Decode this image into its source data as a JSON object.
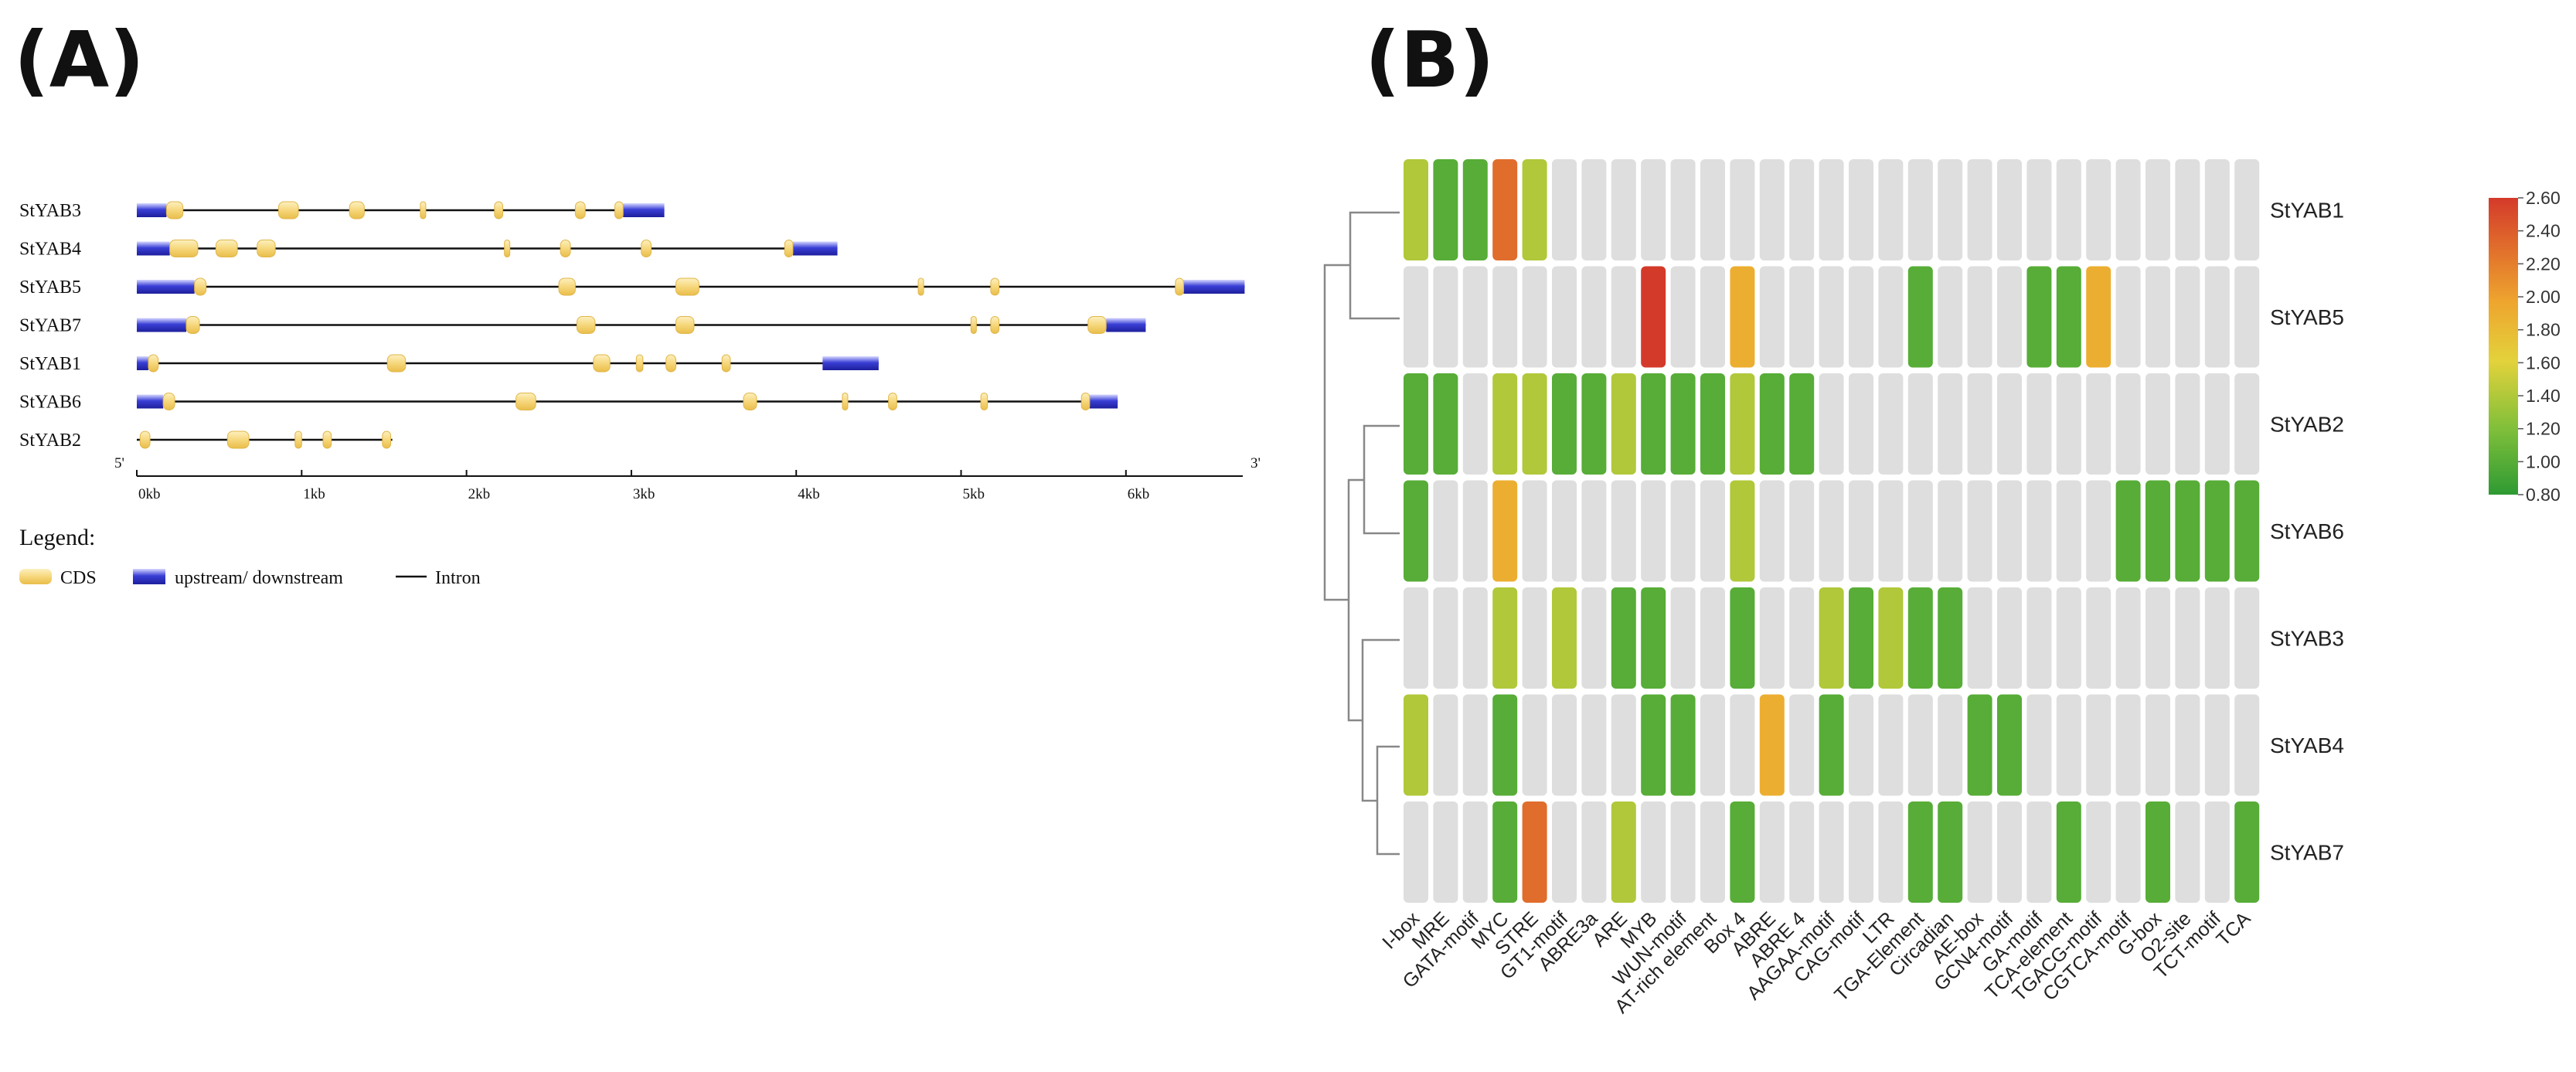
{
  "panels": {
    "a": "(A)",
    "b": "(B)"
  },
  "chart_data": [
    {
      "type": "gene_structure",
      "panel": "(A)",
      "unit": "kb",
      "end_labels": {
        "left": "5'",
        "right": "3'"
      },
      "axis": {
        "ticks": [
          0,
          1,
          2,
          3,
          4,
          5,
          6
        ],
        "tick_labels": [
          "0kb",
          "1kb",
          "2kb",
          "3kb",
          "4kb",
          "5kb",
          "6kb"
        ],
        "range": [
          0,
          6.7
        ]
      },
      "genes": [
        {
          "name": "StYAB3",
          "length": 3.2,
          "utr": [
            [
              0,
              0.18
            ],
            [
              2.95,
              3.2
            ]
          ],
          "cds": [
            [
              0.18,
              0.28
            ],
            [
              0.86,
              0.98
            ],
            [
              1.29,
              1.38
            ],
            [
              1.72,
              1.75
            ],
            [
              2.17,
              2.22
            ],
            [
              2.66,
              2.72
            ],
            [
              2.9,
              2.95
            ]
          ]
        },
        {
          "name": "StYAB4",
          "length": 4.25,
          "utr": [
            [
              0,
              0.2
            ],
            [
              3.98,
              4.25
            ]
          ],
          "cds": [
            [
              0.2,
              0.37
            ],
            [
              0.48,
              0.61
            ],
            [
              0.73,
              0.84
            ],
            [
              2.23,
              2.26
            ],
            [
              2.57,
              2.63
            ],
            [
              3.06,
              3.12
            ],
            [
              3.93,
              3.98
            ]
          ]
        },
        {
          "name": "StYAB5",
          "length": 6.72,
          "utr": [
            [
              0,
              0.35
            ],
            [
              6.35,
              6.72
            ]
          ],
          "cds": [
            [
              0.35,
              0.42
            ],
            [
              2.56,
              2.66
            ],
            [
              3.27,
              3.41
            ],
            [
              4.74,
              4.77
            ],
            [
              5.18,
              5.23
            ],
            [
              6.3,
              6.35
            ]
          ]
        },
        {
          "name": "StYAB7",
          "length": 6.12,
          "utr": [
            [
              0,
              0.3
            ],
            [
              5.88,
              6.12
            ]
          ],
          "cds": [
            [
              0.3,
              0.38
            ],
            [
              2.67,
              2.78
            ],
            [
              3.27,
              3.38
            ],
            [
              5.06,
              5.09
            ],
            [
              5.18,
              5.23
            ],
            [
              5.77,
              5.88
            ]
          ]
        },
        {
          "name": "StYAB1",
          "length": 4.5,
          "utr": [
            [
              0,
              0.07
            ],
            [
              4.16,
              4.5
            ]
          ],
          "cds": [
            [
              0.07,
              0.13
            ],
            [
              1.52,
              1.63
            ],
            [
              2.77,
              2.87
            ],
            [
              3.03,
              3.07
            ],
            [
              3.21,
              3.27
            ],
            [
              3.55,
              3.6
            ]
          ]
        },
        {
          "name": "StYAB6",
          "length": 5.95,
          "utr": [
            [
              0,
              0.16
            ],
            [
              5.78,
              5.95
            ]
          ],
          "cds": [
            [
              0.16,
              0.23
            ],
            [
              2.3,
              2.42
            ],
            [
              3.68,
              3.76
            ],
            [
              4.28,
              4.31
            ],
            [
              4.56,
              4.61
            ],
            [
              5.12,
              5.16
            ],
            [
              5.73,
              5.78
            ]
          ]
        },
        {
          "name": "StYAB2",
          "length": 1.55,
          "utr": [],
          "cds": [
            [
              0.02,
              0.08
            ],
            [
              0.55,
              0.68
            ],
            [
              0.96,
              1.0
            ],
            [
              1.13,
              1.18
            ],
            [
              1.49,
              1.54
            ]
          ]
        }
      ],
      "legend": {
        "title": "Legend:",
        "cds": "CDS",
        "utr": "upstream/ downstream",
        "intron": "Intron"
      },
      "colors": {
        "cds": "#f6d77c",
        "utr": "#3a3fd6",
        "intron": "#111111"
      }
    },
    {
      "type": "heatmap",
      "panel": "(B)",
      "rows": [
        "StYAB1",
        "StYAB5",
        "StYAB2",
        "StYAB6",
        "StYAB3",
        "StYAB4",
        "StYAB7"
      ],
      "columns": [
        "I-box",
        "MRE",
        "GATA-motif",
        "MYC",
        "STRE",
        "GT1-motif",
        "ABRE3a",
        "ARE",
        "MYB",
        "WUN-motif",
        "AT-rich element",
        "Box 4",
        "ABRE",
        "ABRE 4",
        "AAGAA-motif",
        "CAG-motif",
        "LTR",
        "TGA-Element",
        "Circadian",
        "AE-box",
        "GCN4-motif",
        "GA-motif",
        "TCA-element",
        "TGACG-motif",
        "CGTCA-motif",
        "G-box",
        "O2-site",
        "TCT-motif",
        "TCA"
      ],
      "values": [
        [
          1.4,
          1.0,
          1.0,
          2.3,
          1.4,
          null,
          null,
          null,
          null,
          null,
          null,
          null,
          null,
          null,
          null,
          null,
          null,
          null,
          null,
          null,
          null,
          null,
          null,
          null,
          null,
          null,
          null,
          null,
          null
        ],
        [
          null,
          null,
          null,
          null,
          null,
          null,
          null,
          null,
          2.6,
          null,
          null,
          1.9,
          null,
          null,
          null,
          null,
          null,
          1.0,
          null,
          null,
          null,
          1.0,
          1.0,
          1.9,
          null,
          null,
          null,
          null,
          null
        ],
        [
          1.0,
          1.0,
          null,
          1.4,
          1.4,
          1.0,
          1.0,
          1.4,
          1.0,
          1.0,
          1.0,
          1.4,
          1.0,
          1.0,
          null,
          null,
          null,
          null,
          null,
          null,
          null,
          null,
          null,
          null,
          null,
          null,
          null,
          null,
          null
        ],
        [
          1.0,
          null,
          null,
          1.9,
          null,
          null,
          null,
          null,
          null,
          null,
          null,
          1.4,
          null,
          null,
          null,
          null,
          null,
          null,
          null,
          null,
          null,
          null,
          null,
          null,
          1.0,
          1.0,
          1.0,
          1.0,
          1.0
        ],
        [
          null,
          null,
          null,
          1.4,
          null,
          1.4,
          null,
          1.0,
          1.0,
          null,
          null,
          1.0,
          null,
          null,
          1.4,
          1.0,
          1.4,
          1.0,
          1.0,
          null,
          null,
          null,
          null,
          null,
          null,
          null,
          null,
          null,
          null
        ],
        [
          1.4,
          null,
          null,
          1.0,
          null,
          null,
          null,
          null,
          1.0,
          1.0,
          null,
          null,
          1.9,
          null,
          1.0,
          null,
          null,
          null,
          null,
          1.0,
          1.0,
          null,
          null,
          null,
          null,
          null,
          null,
          null,
          null
        ],
        [
          null,
          null,
          null,
          1.0,
          2.3,
          null,
          null,
          1.4,
          null,
          null,
          null,
          1.0,
          null,
          null,
          null,
          null,
          null,
          1.0,
          1.0,
          null,
          null,
          null,
          1.0,
          null,
          null,
          1.0,
          null,
          null,
          1.0
        ]
      ],
      "colorbar": {
        "min": 0.8,
        "max": 2.6,
        "ticks": [
          "2.60",
          "2.40",
          "2.20",
          "2.00",
          "1.80",
          "1.60",
          "1.40",
          "1.20",
          "1.00",
          "0.80"
        ]
      },
      "colors": {
        "empty": "#dedede",
        "low": "#2e9a33",
        "mid": "#e3d23b",
        "high": "#d43a2a"
      }
    }
  ]
}
